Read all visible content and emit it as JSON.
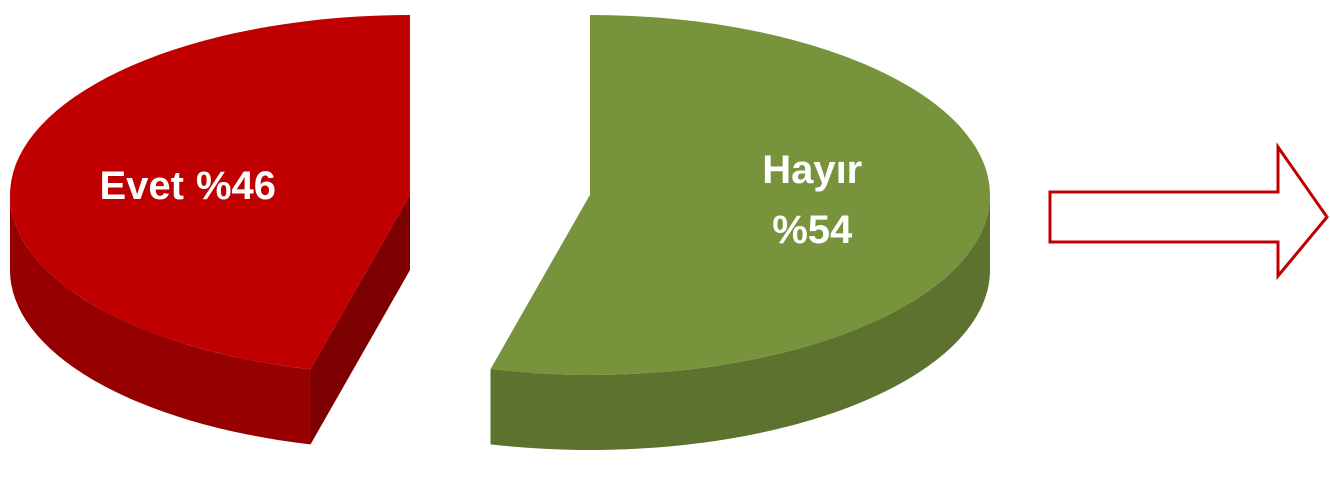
{
  "chart_data": {
    "type": "pie",
    "categories": [
      "Evet",
      "Hayır"
    ],
    "values": [
      46,
      54
    ],
    "value_labels": [
      "%46",
      "%54"
    ],
    "colors": [
      "#c00000",
      "#77933c"
    ]
  }
}
